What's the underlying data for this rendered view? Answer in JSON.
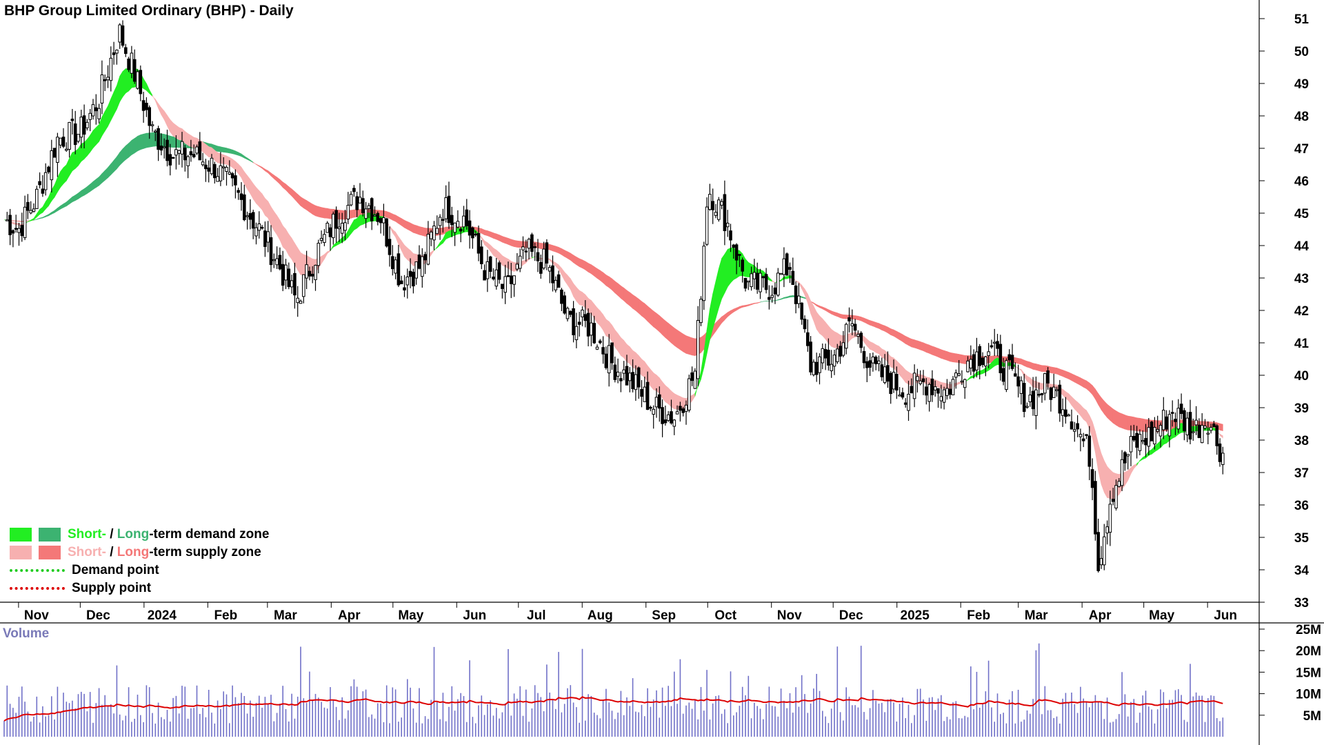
{
  "title": "BHP Group Limited Ordinary (BHP) - Daily",
  "colors": {
    "short_demand": "#22ee22",
    "long_demand": "#3cb371",
    "short_supply": "#f7b0b0",
    "long_supply": "#f47878",
    "crossover": "#f26b21",
    "demand_point": "#22cc22",
    "supply_point": "#dd0000",
    "volume_bar": "#7070c8",
    "volume_avg": "#dd0000"
  },
  "legend": {
    "short_demand": "Short-",
    "long_demand": "Long",
    "demand_rest": "-term demand zone",
    "short_supply": "Short-",
    "long_supply": "Long",
    "supply_rest": "-term supply zone",
    "sep": " / ",
    "demand_point": "Demand point",
    "supply_point": "Supply point"
  },
  "volume_label": "Volume",
  "chart_data": [
    {
      "type": "candlestick",
      "title": "BHP Group Limited Ordinary (BHP) - Daily",
      "ylim": [
        33,
        51
      ],
      "yticks": [
        33,
        34,
        35,
        36,
        37,
        38,
        39,
        40,
        41,
        42,
        43,
        44,
        45,
        46,
        47,
        48,
        49,
        50,
        51
      ],
      "x_tick_labels": [
        "Nov",
        "Dec",
        "2024",
        "Feb",
        "Mar",
        "Apr",
        "May",
        "Jun",
        "Jul",
        "Aug",
        "Sep",
        "Oct",
        "Nov",
        "Dec",
        "2025",
        "Feb",
        "Mar",
        "Apr",
        "May",
        "Jun"
      ],
      "close_series": {
        "name": "close",
        "dates": [
          "2023-10-25",
          "2023-11-01",
          "2023-11-10",
          "2023-11-20",
          "2023-12-01",
          "2023-12-10",
          "2023-12-20",
          "2023-12-28",
          "2024-01-05",
          "2024-01-15",
          "2024-01-25",
          "2024-02-05",
          "2024-02-15",
          "2024-02-26",
          "2024-03-05",
          "2024-03-15",
          "2024-03-25",
          "2024-04-05",
          "2024-04-15",
          "2024-04-25",
          "2024-05-05",
          "2024-05-15",
          "2024-05-25",
          "2024-06-05",
          "2024-06-15",
          "2024-06-25",
          "2024-07-05",
          "2024-07-15",
          "2024-07-25",
          "2024-08-05",
          "2024-08-15",
          "2024-08-25",
          "2024-09-05",
          "2024-09-15",
          "2024-09-25",
          "2024-10-01",
          "2024-10-10",
          "2024-10-20",
          "2024-11-01",
          "2024-11-10",
          "2024-11-20",
          "2024-12-01",
          "2024-12-10",
          "2024-12-20",
          "2025-01-05",
          "2025-01-15",
          "2025-01-25",
          "2025-02-05",
          "2025-02-15",
          "2025-02-25",
          "2025-03-05",
          "2025-03-15",
          "2025-03-25",
          "2025-04-05",
          "2025-04-09",
          "2025-04-15",
          "2025-04-25",
          "2025-05-05",
          "2025-05-15",
          "2025-05-25",
          "2025-06-01",
          "2025-06-08"
        ],
        "values": [
          44.8,
          44.5,
          45.5,
          47.3,
          47.5,
          48.5,
          50.6,
          49.2,
          47.5,
          46.8,
          46.8,
          46.4,
          45.6,
          44.5,
          43.6,
          42.3,
          43.8,
          45.0,
          45.5,
          44.9,
          42.9,
          43.4,
          45.2,
          44.8,
          43.2,
          42.6,
          43.8,
          43.4,
          41.7,
          41.5,
          40.4,
          39.8,
          39.0,
          38.7,
          40.1,
          45.8,
          44.8,
          42.8,
          42.7,
          43.4,
          40.3,
          40.5,
          41.6,
          40.2,
          39.5,
          39.8,
          39.5,
          40.5,
          40.8,
          40.0,
          39.2,
          39.7,
          39.0,
          37.5,
          34.2,
          36.3,
          37.8,
          38.2,
          38.9,
          38.3,
          38.7,
          37.6
        ]
      }
    },
    {
      "type": "bar",
      "title": "Volume",
      "ylim": [
        0,
        25000000
      ],
      "yticks": [
        5000000,
        10000000,
        15000000,
        20000000,
        25000000
      ],
      "ytick_labels": [
        "5M",
        "10M",
        "15M",
        "20M",
        "25M"
      ],
      "average_approx": 8500000
    }
  ]
}
